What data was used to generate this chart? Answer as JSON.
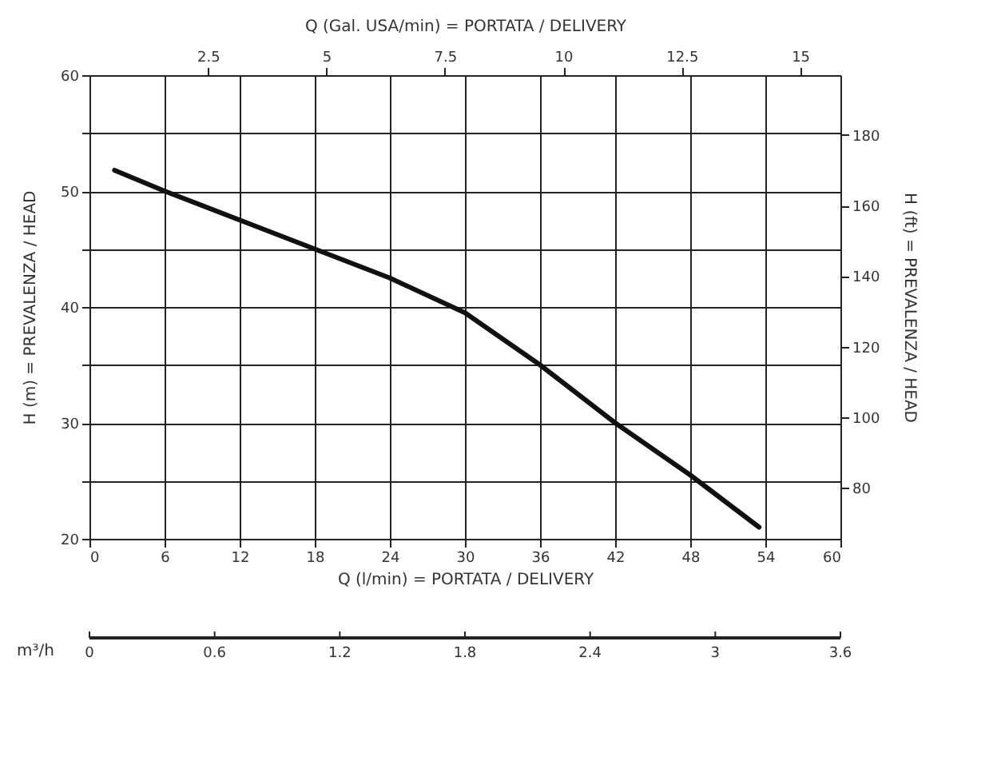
{
  "chart_data": [
    {
      "type": "line",
      "xlabel": "Q (l/min) = PORTATA / DELIVERY",
      "x2label": "Q (Gal. USA/min) = PORTATA / DELIVERY",
      "ylabel": "H (m) = PREVALENZA / HEAD",
      "y2label": "H (ft) = PREVALENZA / HEAD",
      "xlim": [
        0,
        60
      ],
      "xticks": [
        0,
        6,
        12,
        18,
        24,
        30,
        36,
        42,
        48,
        54,
        60
      ],
      "x2lim": [
        0,
        15.85
      ],
      "x2ticks": [
        2.5,
        5,
        7.5,
        10,
        12.5,
        15
      ],
      "ylim": [
        20,
        60
      ],
      "yticks": [
        20,
        {
          "value": 25,
          "label": null
        },
        30,
        {
          "value": 35,
          "label": null
        },
        40,
        {
          "value": 45,
          "label": null
        },
        50,
        {
          "value": 55,
          "label": null
        },
        60
      ],
      "y2lim": [
        65.6,
        196.9
      ],
      "y2ticks": [
        80,
        100,
        120,
        140,
        160,
        180
      ],
      "grid": true,
      "line_style": "solid",
      "marker": "none",
      "annotations": [
        "m³/h",
        "0",
        "0.6",
        "1.2",
        "1.8",
        "2.4",
        "3",
        "3.6"
      ],
      "series": [
        {
          "color": "#111111",
          "x": [
            2,
            6,
            12,
            18,
            24,
            30,
            36,
            42,
            48,
            53.5
          ],
          "values": [
            51.8,
            50,
            47.5,
            45,
            42.5,
            39.5,
            35,
            30,
            25.5,
            21
          ]
        }
      ]
    }
  ]
}
